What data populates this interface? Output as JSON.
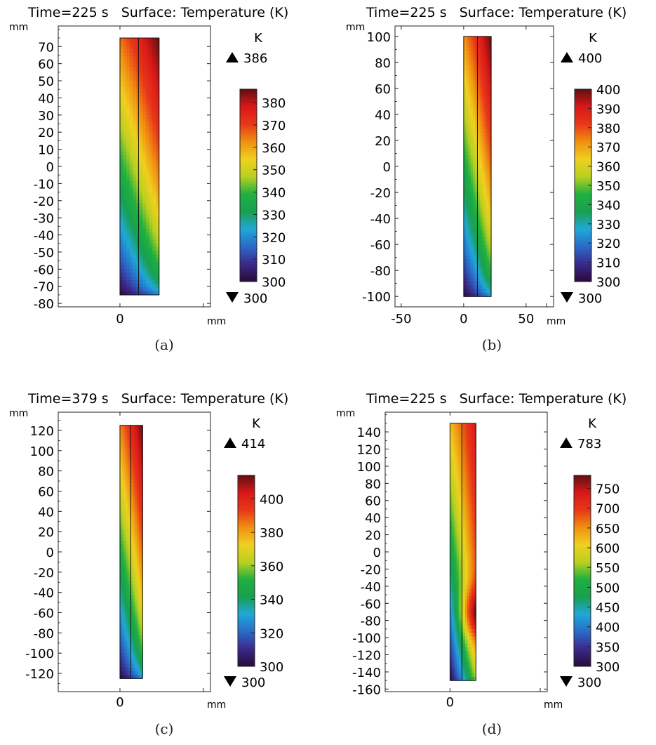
{
  "chart_data": [
    {
      "type": "heatmap",
      "panel": "a",
      "title": "Time=225 s   Surface: Temperature (K)",
      "time_s": 225,
      "caption": "(a)",
      "x_unit": "mm",
      "y_unit": "mm",
      "xlim": [
        -15,
        22
      ],
      "ylim": [
        -82,
        82
      ],
      "x_ticks": [
        0
      ],
      "y_ticks": [
        70,
        60,
        50,
        40,
        30,
        20,
        10,
        0,
        -10,
        -20,
        -30,
        -40,
        -50,
        -60,
        -70,
        -80
      ],
      "geometry_mm": {
        "x": [
          0,
          9.5
        ],
        "y": [
          -75,
          75
        ],
        "divider_x": 4.5
      },
      "colorbar": {
        "unit": "K",
        "min": 300,
        "max": 386,
        "max_label": "386",
        "min_label": "300",
        "ticks": [
          380,
          370,
          360,
          350,
          340,
          330,
          320,
          310,
          300
        ]
      },
      "field": {
        "left_top": 365,
        "right_top": 386,
        "left_bottom": 300,
        "right_bottom": 315,
        "hot_bias": 0.35
      },
      "colormap": [
        "#2a0a3a",
        "#3a2a8a",
        "#2a6ac8",
        "#20a8d8",
        "#18a050",
        "#20b040",
        "#b8d020",
        "#f0d020",
        "#f09010",
        "#e83818",
        "#d81818",
        "#601010"
      ]
    },
    {
      "type": "heatmap",
      "panel": "b",
      "title": "Time=225 s   Surface: Temperature (K)",
      "time_s": 225,
      "caption": "(b)",
      "x_unit": "mm",
      "y_unit": "mm",
      "xlim": [
        -55,
        72
      ],
      "ylim": [
        -108,
        108
      ],
      "x_ticks": [
        -50,
        0,
        50
      ],
      "y_ticks": [
        100,
        80,
        60,
        40,
        20,
        0,
        -20,
        -40,
        -60,
        -80,
        -100
      ],
      "geometry_mm": {
        "x": [
          0,
          22
        ],
        "y": [
          -100,
          100
        ],
        "divider_x": 11
      },
      "colorbar": {
        "unit": "K",
        "min": 300,
        "max": 400,
        "max_label": "400",
        "min_label": "300",
        "ticks": [
          400,
          390,
          380,
          370,
          360,
          350,
          340,
          330,
          320,
          310,
          300
        ]
      },
      "field": {
        "left_top": 372,
        "right_top": 400,
        "left_bottom": 300,
        "right_bottom": 318,
        "hot_bias": 0.3
      },
      "colormap": [
        "#2a0a3a",
        "#3a2a8a",
        "#2a6ac8",
        "#20a8d8",
        "#18a050",
        "#20b040",
        "#b8d020",
        "#f0d020",
        "#f09010",
        "#e83818",
        "#d81818",
        "#601010"
      ]
    },
    {
      "type": "heatmap",
      "panel": "c",
      "title": "Time=379 s   Surface: Temperature (K)",
      "time_s": 379,
      "caption": "(c)",
      "x_unit": "mm",
      "y_unit": "mm",
      "xlim": [
        -15,
        22
      ],
      "ylim": [
        -138,
        138
      ],
      "x_ticks": [
        0
      ],
      "y_ticks": [
        120,
        100,
        80,
        60,
        40,
        20,
        0,
        -20,
        -40,
        -60,
        -80,
        -100,
        -120
      ],
      "geometry_mm": {
        "x": [
          0,
          5.5
        ],
        "y": [
          -125,
          125
        ],
        "divider_x": 2.6
      },
      "colorbar": {
        "unit": "K",
        "min": 300,
        "max": 414,
        "max_label": "414",
        "min_label": "300",
        "ticks": [
          400,
          380,
          360,
          340,
          320,
          300
        ]
      },
      "field": {
        "left_top": 384,
        "right_top": 414,
        "left_bottom": 300,
        "right_bottom": 320,
        "hot_bias": 0.3
      },
      "colormap": [
        "#2a0a3a",
        "#3a2a8a",
        "#2a6ac8",
        "#20a8d8",
        "#18a050",
        "#20b040",
        "#b8d020",
        "#f0d020",
        "#f09010",
        "#e83818",
        "#d81818",
        "#601010"
      ]
    },
    {
      "type": "heatmap",
      "panel": "d",
      "title": "Time=225 s   Surface: Temperature (K)",
      "time_s": 225,
      "caption": "(d)",
      "x_unit": "mm",
      "y_unit": "mm",
      "xlim": [
        -12,
        18
      ],
      "ylim": [
        -163,
        163
      ],
      "x_ticks": [
        0
      ],
      "y_ticks": [
        140,
        120,
        100,
        80,
        60,
        40,
        20,
        0,
        -20,
        -40,
        -60,
        -80,
        -100,
        -120,
        -140,
        -160
      ],
      "geometry_mm": {
        "x": [
          0,
          4.8
        ],
        "y": [
          -150,
          150
        ],
        "divider_x": 2.2
      },
      "colorbar": {
        "unit": "K",
        "min": 300,
        "max": 783,
        "max_label": "783",
        "min_label": "300",
        "ticks": [
          750,
          700,
          650,
          600,
          550,
          500,
          450,
          400,
          350,
          300
        ]
      },
      "field": {
        "left_top": 620,
        "right_top": 740,
        "left_bottom": 300,
        "right_bottom": 520,
        "hot_bias": 0.15,
        "hot_spot": {
          "y": -70,
          "value": 783
        }
      },
      "colormap": [
        "#2a0a3a",
        "#3a2a8a",
        "#2a6ac8",
        "#20a8d8",
        "#18a050",
        "#20b040",
        "#b8d020",
        "#f0d020",
        "#f09010",
        "#e83818",
        "#d81818",
        "#601010"
      ]
    }
  ]
}
